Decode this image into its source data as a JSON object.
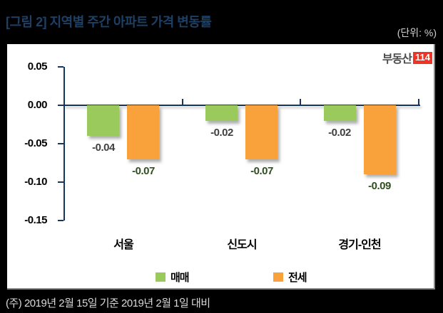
{
  "header": {
    "title": "[그림 2] 지역별 주간 아파트 가격 변동률",
    "unit": "(단위: %)"
  },
  "logo": {
    "text": "부동산",
    "badge": "114"
  },
  "chart_data": {
    "type": "bar",
    "title": "[그림 2] 지역별 주간 아파트 가격 변동률",
    "unit": "%",
    "categories": [
      "서울",
      "신도시",
      "경기-인천"
    ],
    "series": [
      {
        "name": "매매",
        "color": "#9aca5c",
        "label_color": "#404040",
        "values": [
          -0.04,
          -0.02,
          -0.02
        ]
      },
      {
        "name": "전세",
        "color": "#f9a23c",
        "label_color": "#2f4f1e",
        "values": [
          -0.07,
          -0.07,
          -0.09
        ]
      }
    ],
    "ylim": [
      -0.15,
      0.05
    ],
    "ytick_step": 0.05,
    "ytick_labels": [
      "0.05",
      "0.00",
      "-0.05",
      "-0.10",
      "-0.15"
    ],
    "axis_color": "#17365d",
    "grid": false,
    "legend_position": "bottom"
  },
  "footer": {
    "note": "(주) 2019년 2월 15일 기준 2019년 2월 1일 대비"
  }
}
